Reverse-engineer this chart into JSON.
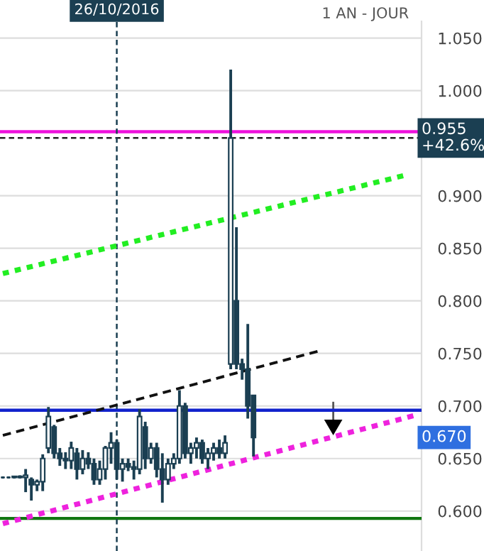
{
  "chart_data": {
    "type": "candlestick",
    "categories": [
      null,
      null,
      null,
      null,
      null,
      null,
      null,
      null,
      null,
      null,
      null,
      null,
      null,
      null,
      null,
      null,
      null,
      null,
      null,
      null,
      "26/10/2016",
      null,
      null,
      null,
      null,
      null,
      null,
      null,
      null,
      null,
      null,
      null,
      null,
      null,
      null,
      null,
      null,
      null,
      null,
      null,
      null,
      null,
      null,
      null,
      null,
      null,
      null,
      null,
      null,
      null,
      null,
      null,
      null,
      null,
      null,
      null,
      null,
      null,
      null,
      null,
      null,
      null,
      null,
      null,
      null,
      null,
      null,
      null,
      null,
      null,
      null,
      null,
      null,
      null
    ],
    "ohlc": [
      [
        0.632,
        0.633,
        0.631,
        0.632
      ],
      [
        0.632,
        0.633,
        0.631,
        0.632
      ],
      [
        0.632,
        0.633,
        0.631,
        0.633
      ],
      [
        0.633,
        0.634,
        0.631,
        0.632
      ],
      [
        0.632,
        0.64,
        0.618,
        0.634
      ],
      [
        0.63,
        0.632,
        0.61,
        0.625
      ],
      [
        0.625,
        0.63,
        0.619,
        0.628
      ],
      [
        0.628,
        0.654,
        0.619,
        0.65
      ],
      [
        0.66,
        0.699,
        0.655,
        0.69
      ],
      [
        0.68,
        0.682,
        0.65,
        0.655
      ],
      [
        0.655,
        0.66,
        0.643,
        0.65
      ],
      [
        0.65,
        0.656,
        0.64,
        0.648
      ],
      [
        0.648,
        0.666,
        0.64,
        0.66
      ],
      [
        0.655,
        0.66,
        0.63,
        0.64
      ],
      [
        0.64,
        0.658,
        0.635,
        0.65
      ],
      [
        0.65,
        0.656,
        0.64,
        0.645
      ],
      [
        0.645,
        0.65,
        0.625,
        0.63
      ],
      [
        0.63,
        0.648,
        0.625,
        0.64
      ],
      [
        0.64,
        0.662,
        0.63,
        0.66
      ],
      [
        0.66,
        0.675,
        0.645,
        0.665
      ],
      [
        0.665,
        0.668,
        0.63,
        0.64
      ],
      [
        0.64,
        0.65,
        0.628,
        0.645
      ],
      [
        0.645,
        0.65,
        0.638,
        0.642
      ],
      [
        0.642,
        0.648,
        0.63,
        0.64
      ],
      [
        0.64,
        0.697,
        0.635,
        0.69
      ],
      [
        0.68,
        0.685,
        0.64,
        0.65
      ],
      [
        0.65,
        0.665,
        0.645,
        0.66
      ],
      [
        0.66,
        0.665,
        0.632,
        0.64
      ],
      [
        0.64,
        0.655,
        0.608,
        0.63
      ],
      [
        0.63,
        0.65,
        0.625,
        0.645
      ],
      [
        0.645,
        0.655,
        0.64,
        0.65
      ],
      [
        0.65,
        0.715,
        0.645,
        0.7
      ],
      [
        0.7,
        0.703,
        0.65,
        0.655
      ],
      [
        0.655,
        0.665,
        0.645,
        0.66
      ],
      [
        0.66,
        0.67,
        0.65,
        0.665
      ],
      [
        0.665,
        0.668,
        0.645,
        0.65
      ],
      [
        0.65,
        0.66,
        0.64,
        0.655
      ],
      [
        0.655,
        0.665,
        0.648,
        0.66
      ],
      [
        0.66,
        0.668,
        0.65,
        0.655
      ],
      [
        0.655,
        0.672,
        0.65,
        0.665
      ],
      [
        0.74,
        1.02,
        0.735,
        0.955
      ],
      [
        0.8,
        0.87,
        0.735,
        0.74
      ],
      [
        0.74,
        0.745,
        0.725,
        0.735
      ],
      [
        0.735,
        0.778,
        0.688,
        0.7
      ],
      [
        0.71,
        0.71,
        0.652,
        0.67
      ],
      null,
      null,
      null,
      null,
      null,
      null,
      null,
      null,
      null,
      null,
      null,
      null,
      null,
      null,
      null,
      null,
      null,
      null,
      null,
      null,
      null,
      null,
      null,
      null,
      null,
      null,
      null,
      null,
      null
    ],
    "color": "#1b3f52",
    "series": [
      {
        "type": "line",
        "values": [
          0.826,
          null,
          null,
          null,
          null,
          null,
          null,
          null,
          null,
          null,
          null,
          null,
          null,
          null,
          null,
          null,
          null,
          null,
          null,
          null,
          null,
          null,
          null,
          null,
          null,
          null,
          null,
          null,
          null,
          null,
          null,
          null,
          null,
          null,
          null,
          null,
          null,
          null,
          null,
          null,
          null,
          null,
          null,
          null,
          null,
          null,
          null,
          null,
          null,
          null,
          null,
          null,
          null,
          null,
          null,
          null,
          null,
          null,
          null,
          null,
          null,
          null,
          null,
          null,
          null,
          null,
          null,
          null,
          null,
          null,
          null,
          0.92,
          null,
          null
        ],
        "color": "#22ee22",
        "line_style": "dotted"
      },
      {
        "type": "line",
        "values": [
          0.672,
          null,
          null,
          null,
          null,
          null,
          null,
          null,
          null,
          null,
          null,
          null,
          null,
          null,
          null,
          null,
          null,
          null,
          null,
          null,
          null,
          null,
          null,
          null,
          null,
          null,
          null,
          null,
          null,
          null,
          null,
          null,
          null,
          null,
          null,
          null,
          null,
          null,
          null,
          null,
          null,
          null,
          null,
          null,
          null,
          null,
          null,
          null,
          null,
          null,
          null,
          null,
          null,
          null,
          null,
          null,
          0.753,
          null,
          null,
          null,
          null,
          null,
          null,
          null,
          null,
          null,
          null,
          null,
          null,
          null,
          null,
          null,
          null,
          null
        ],
        "color": "#111111",
        "line_style": "dashed"
      },
      {
        "type": "line",
        "values": [
          0.588,
          null,
          null,
          null,
          null,
          null,
          null,
          null,
          null,
          null,
          null,
          null,
          null,
          null,
          null,
          null,
          null,
          null,
          null,
          null,
          null,
          null,
          null,
          null,
          null,
          null,
          null,
          null,
          null,
          null,
          null,
          null,
          null,
          null,
          null,
          null,
          null,
          null,
          null,
          null,
          null,
          null,
          null,
          null,
          null,
          null,
          null,
          null,
          null,
          null,
          null,
          null,
          null,
          null,
          null,
          null,
          null,
          null,
          null,
          null,
          null,
          null,
          null,
          null,
          null,
          null,
          null,
          null,
          null,
          null,
          null,
          null,
          null,
          0.692
        ],
        "color": "#ee22dd",
        "line_style": "dotted"
      }
    ],
    "ref_lines": [
      {
        "axis": "y",
        "value": 0.961,
        "color": "#ee11dd",
        "line_style": "solid"
      },
      {
        "axis": "y",
        "value": 0.955,
        "label": "0.955\n+42.6%",
        "color": "#222222",
        "line_style": "dashed"
      },
      {
        "axis": "y",
        "value": 0.696,
        "color": "#1122cc",
        "line_style": "solid"
      },
      {
        "axis": "y",
        "value": 0.593,
        "color": "#117711",
        "line_style": "solid"
      },
      {
        "axis": "x",
        "value": "26/10/2016",
        "color": "#1b3f52",
        "line_style": "dashed"
      }
    ],
    "annotations": [
      "1 AN - JOUR",
      {
        "text": "0.670",
        "y": 0.67
      }
    ],
    "ylim": [
      0.562,
      1.066
    ],
    "yticks": [
      {
        "value": 0.6,
        "label": "0.600"
      },
      {
        "value": 0.65,
        "label": "0.650"
      },
      {
        "value": 0.7,
        "label": "0.700"
      },
      {
        "value": 0.75,
        "label": "0.750"
      },
      {
        "value": 0.8,
        "label": "0.800"
      },
      {
        "value": 0.85,
        "label": "0.850"
      },
      {
        "value": 0.9,
        "label": "0.900"
      },
      {
        "value": 1.0,
        "label": "1.000"
      },
      {
        "value": 1.05,
        "label": "1.050"
      }
    ],
    "grid": "y"
  }
}
